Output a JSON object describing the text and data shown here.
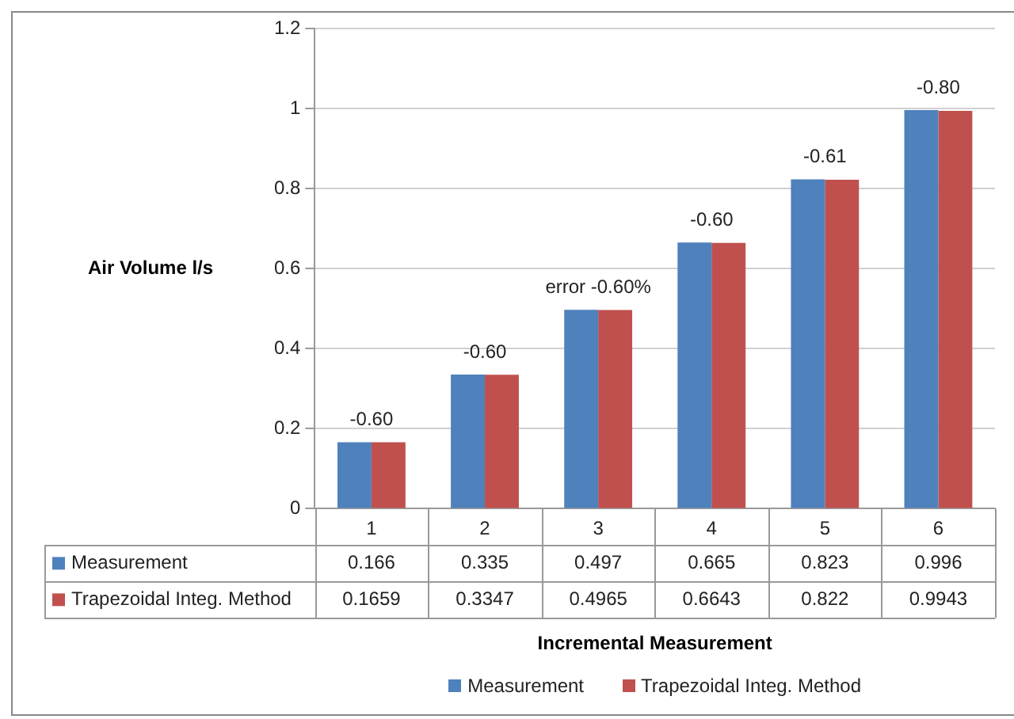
{
  "chart_data": {
    "type": "bar",
    "xlabel": "Incremental Measurement",
    "ylabel": "Air Volume l/s",
    "categories": [
      "1",
      "2",
      "3",
      "4",
      "5",
      "6"
    ],
    "series": [
      {
        "name": "Measurement",
        "color": "#4f81bd",
        "values": [
          0.166,
          0.335,
          0.497,
          0.665,
          0.823,
          0.996
        ]
      },
      {
        "name": "Trapezoidal Integ. Method",
        "color": "#c0504d",
        "values": [
          0.1659,
          0.3347,
          0.4965,
          0.6643,
          0.822,
          0.9943
        ]
      }
    ],
    "ylim": [
      0,
      1.2
    ],
    "yticks": [
      0,
      0.2,
      0.4,
      0.6,
      0.8,
      1,
      1.2
    ],
    "grid": "y",
    "legend": "bottom",
    "data_labels": true,
    "annotations": [
      {
        "text": "-0.60",
        "x": "1",
        "y": 0.166
      },
      {
        "text": "-0.60",
        "x": "2",
        "y": 0.335
      },
      {
        "text": "error -0.60%",
        "x": "3",
        "y": 0.497
      },
      {
        "text": "-0.60",
        "x": "4",
        "y": 0.665
      },
      {
        "text": "-0.61",
        "x": "5",
        "y": 0.823
      },
      {
        "text": "-0.80",
        "x": "6",
        "y": 0.996
      }
    ]
  }
}
